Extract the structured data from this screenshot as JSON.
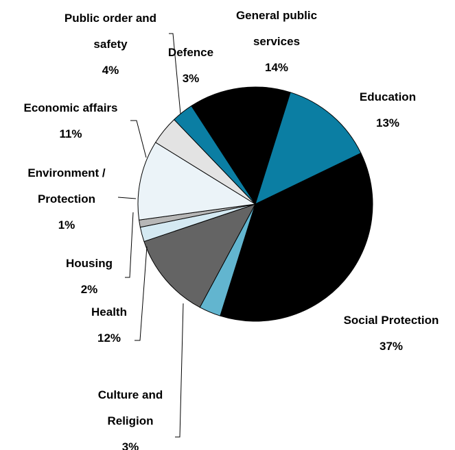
{
  "chart_data": {
    "type": "pie",
    "title": "",
    "slices": [
      {
        "label": "General public services",
        "value": 14,
        "pct_text": "14%",
        "color": "#000000",
        "lines": [
          "General public",
          "services"
        ]
      },
      {
        "label": "Education",
        "value": 13,
        "pct_text": "13%",
        "color": "#0b7ea3",
        "lines": [
          "Education"
        ]
      },
      {
        "label": "Social Protection",
        "value": 37,
        "pct_text": "37%",
        "color": "#000000",
        "lines": [
          "Social Protection"
        ]
      },
      {
        "label": "Culture and Religion",
        "value": 3,
        "pct_text": "3%",
        "color": "#62b5cf",
        "lines": [
          "Culture and",
          "Religion"
        ]
      },
      {
        "label": "Health",
        "value": 12,
        "pct_text": "12%",
        "color": "#646464",
        "lines": [
          "Health"
        ]
      },
      {
        "label": "Housing",
        "value": 2,
        "pct_text": "2%",
        "color": "#d4e9f2",
        "lines": [
          "Housing"
        ]
      },
      {
        "label": "Environment / Protection",
        "value": 1,
        "pct_text": "1%",
        "color": "#b7b7b7",
        "lines": [
          "Environment /",
          "Protection"
        ]
      },
      {
        "label": "Economic affairs",
        "value": 11,
        "pct_text": "11%",
        "color": "#ebf3f8",
        "lines": [
          "Economic affairs"
        ]
      },
      {
        "label": "Public order and safety",
        "value": 4,
        "pct_text": "4%",
        "color": "#e3e3e3",
        "lines": [
          "Public order and",
          "safety"
        ]
      },
      {
        "label": "Defence",
        "value": 3,
        "pct_text": "3%",
        "color": "#0b7ea3",
        "lines": [
          "Defence"
        ]
      }
    ]
  }
}
